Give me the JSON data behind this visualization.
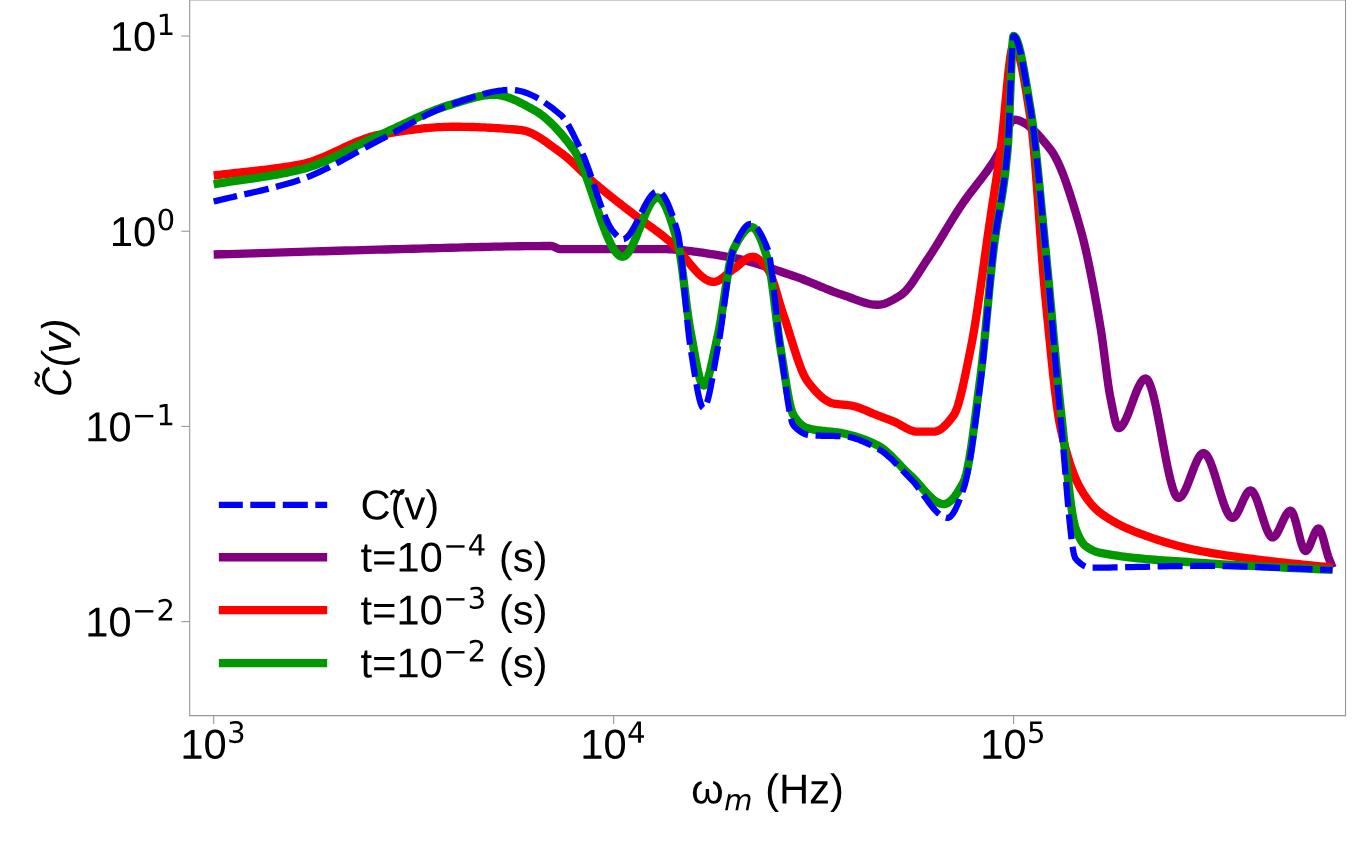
{
  "chart_data": {
    "type": "line",
    "xlabel": "ω$_{m}$ (Hz)",
    "ylabel": "C̃(v)",
    "log": "xy",
    "grid": false,
    "legend": "bottom left",
    "marker": "none",
    "xlim": [
      871,
      676000
    ],
    "ylim": [
      0.0033,
      15.3
    ],
    "xticks": [
      {
        "value": 1000,
        "label": "10$^{3}$"
      },
      {
        "value": 10000,
        "label": "10$^{4}$"
      },
      {
        "value": 100000,
        "label": "10$^{5}$"
      }
    ],
    "yticks": [
      {
        "value": 0.01,
        "label": "10$^{−2}$"
      },
      {
        "value": 0.1,
        "label": "10$^{−1}$"
      },
      {
        "value": 1,
        "label": "10$^{0}$"
      },
      {
        "value": 10,
        "label": "10$^{1}$"
      }
    ],
    "series": [
      {
        "name": "C̃(v)",
        "color": "#0000ff",
        "line_style": "dashed",
        "x": [
          1000,
          1650,
          2615,
          3913,
          5526,
          7370,
          8270,
          10000,
          10530,
          12880,
          14450,
          15580,
          16790,
          18200,
          19950,
          22000,
          24270,
          26150,
          28180,
          31080,
          37580,
          45710,
          55270,
          68390,
          74990,
          82690,
          89130,
          96610,
          100000,
          110300,
          120200,
          131100,
          142900,
          155800,
          293400,
          627300
        ],
        "values": [
          1.42,
          1.84,
          2.95,
          4.45,
          5.3,
          3.95,
          2.62,
          0.99,
          0.91,
          1.6,
          0.99,
          0.25,
          0.124,
          0.25,
          0.81,
          1.09,
          0.81,
          0.25,
          0.101,
          0.09,
          0.089,
          0.077,
          0.054,
          0.034,
          0.048,
          0.17,
          0.81,
          2.62,
          10,
          4.19,
          0.81,
          0.11,
          0.021,
          0.0189,
          0.0193,
          0.0184
        ]
      },
      {
        "name": "t=10$^{−4}$ (s)",
        "color": "#800080",
        "line_style": "solid",
        "x": [
          1000,
          2935,
          6960,
          7370,
          13110,
          19280,
          28180,
          37580,
          45710,
          52180,
          60950,
          73700,
          92800,
          100000,
          123700,
          147100,
          165000,
          174800,
          183000,
          213800,
          258500,
          298500,
          352800,
          391300,
          444100,
          492600,
          537000,
          578800,
          613200,
          627300
        ],
        "values": [
          0.76,
          0.81,
          0.84,
          0.81,
          0.81,
          0.74,
          0.59,
          0.47,
          0.42,
          0.47,
          0.72,
          1.34,
          2.62,
          3.73,
          2.62,
          1.02,
          0.32,
          0.139,
          0.098,
          0.176,
          0.043,
          0.073,
          0.034,
          0.047,
          0.027,
          0.037,
          0.023,
          0.03,
          0.0213,
          0.0189
        ]
      },
      {
        "name": "t=10$^{−3}$ (s)",
        "color": "#ff0000",
        "line_style": "solid",
        "x": [
          1000,
          1650,
          2615,
          3981,
          5856,
          7370,
          8913,
          10840,
          13880,
          17780,
          19950,
          22260,
          24270,
          26610,
          30550,
          35480,
          39130,
          45710,
          50100,
          57500,
          63100,
          70800,
          78100,
          87600,
          92800,
          100000,
          110300,
          120200,
          131100,
          147100,
          165000,
          220000,
          293400,
          414500,
          627300
        ],
        "values": [
          1.93,
          2.2,
          3.13,
          3.43,
          3.3,
          2.53,
          1.78,
          1.29,
          0.88,
          0.55,
          0.64,
          0.74,
          0.64,
          0.37,
          0.17,
          0.131,
          0.128,
          0.114,
          0.106,
          0.094,
          0.094,
          0.114,
          0.25,
          1.19,
          2.62,
          9.0,
          3.73,
          0.45,
          0.098,
          0.048,
          0.036,
          0.027,
          0.023,
          0.0207,
          0.0189
        ]
      },
      {
        "name": "t=10$^{−2}$ (s)",
        "color": "#009900",
        "line_style": "solid",
        "x": [
          1000,
          1650,
          2615,
          3913,
          5012,
          6310,
          7943,
          10530,
          12880,
          14450,
          15580,
          16790,
          18200,
          19950,
          22150,
          24270,
          26150,
          28180,
          30550,
          37580,
          45710,
          55270,
          66830,
          74990,
          82690,
          89130,
          96610,
          100000,
          110300,
          120200,
          131100,
          142900,
          151400,
          165000,
          293400,
          627300
        ],
        "values": [
          1.74,
          2.07,
          3.13,
          4.45,
          5.0,
          4.19,
          2.62,
          0.74,
          1.49,
          0.88,
          0.305,
          0.162,
          0.29,
          0.81,
          1.05,
          0.72,
          0.25,
          0.114,
          0.098,
          0.092,
          0.08,
          0.056,
          0.04,
          0.052,
          0.182,
          0.81,
          2.62,
          10,
          4.19,
          0.81,
          0.124,
          0.03,
          0.0244,
          0.0225,
          0.02,
          0.0184
        ]
      }
    ]
  }
}
